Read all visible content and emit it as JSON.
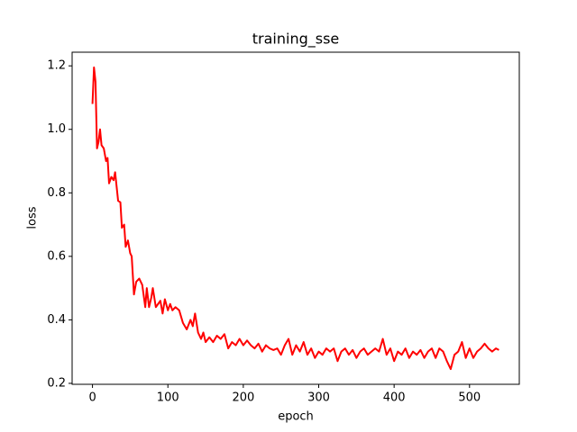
{
  "chart_data": {
    "type": "line",
    "title": "training_sse",
    "xlabel": "epoch",
    "ylabel": "loss",
    "x": [
      0,
      2,
      4,
      6,
      8,
      10,
      12,
      15,
      18,
      20,
      22,
      25,
      28,
      30,
      32,
      34,
      37,
      39,
      42,
      44,
      47,
      50,
      52,
      55,
      58,
      62,
      66,
      70,
      72,
      75,
      78,
      80,
      84,
      87,
      90,
      93,
      96,
      100,
      103,
      106,
      110,
      115,
      120,
      125,
      130,
      133,
      136,
      140,
      144,
      147,
      150,
      155,
      160,
      165,
      170,
      175,
      180,
      185,
      190,
      195,
      200,
      205,
      210,
      215,
      220,
      225,
      230,
      235,
      240,
      245,
      250,
      255,
      260,
      265,
      270,
      275,
      280,
      285,
      290,
      295,
      300,
      305,
      310,
      315,
      320,
      325,
      330,
      335,
      340,
      345,
      350,
      355,
      360,
      365,
      370,
      375,
      380,
      385,
      390,
      395,
      400,
      405,
      410,
      415,
      420,
      425,
      430,
      435,
      440,
      445,
      450,
      455,
      460,
      465,
      470,
      475,
      480,
      485,
      490,
      495,
      500,
      505,
      510,
      515,
      520,
      525,
      530,
      535,
      539
    ],
    "series": [
      {
        "name": "training_sse",
        "color": "#ff0000",
        "values": [
          1.08,
          1.195,
          1.15,
          0.94,
          0.96,
          1.0,
          0.95,
          0.94,
          0.9,
          0.91,
          0.83,
          0.85,
          0.84,
          0.865,
          0.82,
          0.775,
          0.77,
          0.69,
          0.7,
          0.63,
          0.65,
          0.61,
          0.6,
          0.48,
          0.52,
          0.53,
          0.51,
          0.44,
          0.5,
          0.44,
          0.47,
          0.5,
          0.44,
          0.45,
          0.46,
          0.42,
          0.465,
          0.43,
          0.45,
          0.43,
          0.44,
          0.43,
          0.39,
          0.37,
          0.4,
          0.38,
          0.42,
          0.36,
          0.34,
          0.36,
          0.33,
          0.345,
          0.33,
          0.35,
          0.34,
          0.355,
          0.31,
          0.33,
          0.32,
          0.34,
          0.32,
          0.335,
          0.32,
          0.31,
          0.325,
          0.3,
          0.32,
          0.31,
          0.305,
          0.31,
          0.29,
          0.32,
          0.34,
          0.29,
          0.32,
          0.3,
          0.33,
          0.29,
          0.31,
          0.28,
          0.3,
          0.29,
          0.31,
          0.3,
          0.31,
          0.27,
          0.3,
          0.31,
          0.29,
          0.305,
          0.28,
          0.3,
          0.31,
          0.29,
          0.3,
          0.31,
          0.3,
          0.34,
          0.29,
          0.31,
          0.27,
          0.3,
          0.29,
          0.31,
          0.28,
          0.3,
          0.29,
          0.305,
          0.28,
          0.3,
          0.31,
          0.28,
          0.31,
          0.3,
          0.27,
          0.245,
          0.29,
          0.3,
          0.33,
          0.28,
          0.31,
          0.28,
          0.3,
          0.31,
          0.325,
          0.31,
          0.3,
          0.31,
          0.305
        ]
      }
    ],
    "xlim": [
      -27,
      566
    ],
    "ylim": [
      0.197,
      1.243
    ],
    "xticks": [
      0,
      100,
      200,
      300,
      400,
      500
    ],
    "yticks": [
      0.2,
      0.4,
      0.6,
      0.8,
      {
        "value": 1.0,
        "label": "1.0"
      },
      1.2
    ]
  }
}
